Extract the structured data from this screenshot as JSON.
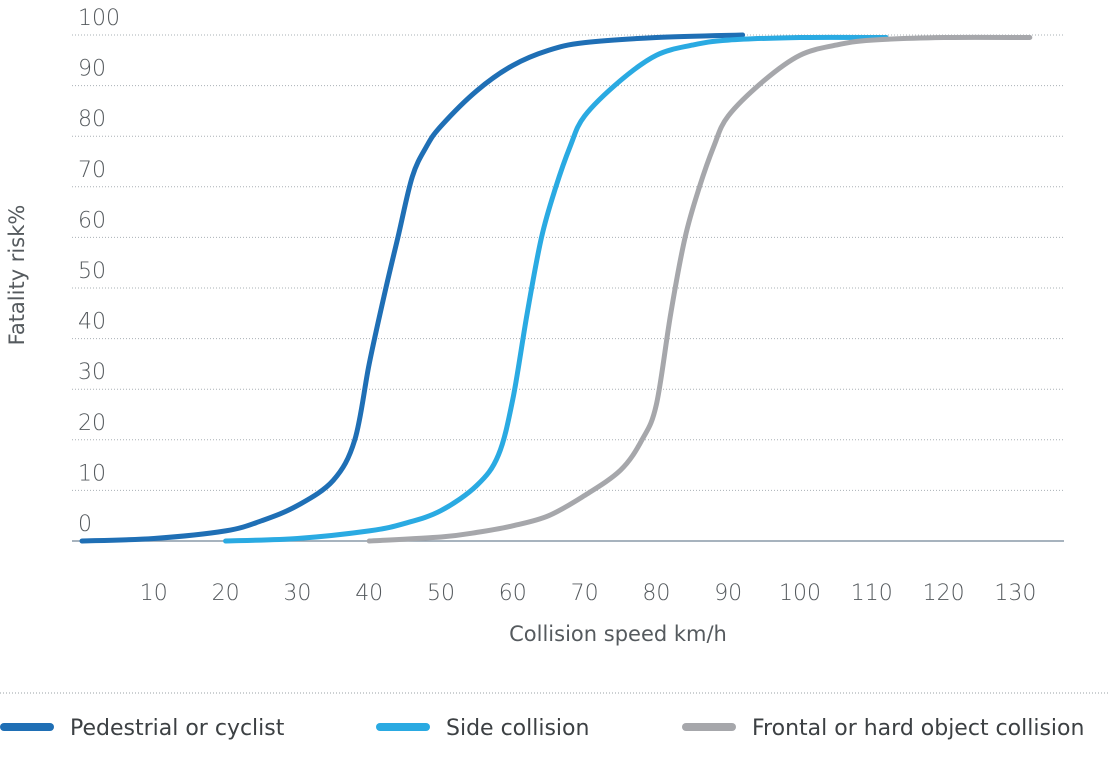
{
  "chart_data": {
    "type": "line",
    "xlabel": "Collision speed km/h",
    "ylabel": "Fatality risk%",
    "ylim": [
      0,
      100
    ],
    "y_ticks": [
      "0",
      "10",
      "20",
      "30",
      "40",
      "50",
      "60",
      "70",
      "80",
      "90",
      "100"
    ],
    "x_ticks": [
      "10",
      "20",
      "30",
      "40",
      "50",
      "60",
      "70",
      "80",
      "90",
      "100",
      "110",
      "120",
      "130"
    ],
    "grid": "horizontal dotted",
    "legend_position": "bottom",
    "series": [
      {
        "name": "Pedestrial or cyclist",
        "color": "#1f6fb5",
        "points": [
          [
            0,
            0
          ],
          [
            10,
            0.5
          ],
          [
            20,
            2
          ],
          [
            25,
            4
          ],
          [
            30,
            7
          ],
          [
            35,
            12
          ],
          [
            38,
            20
          ],
          [
            40,
            35
          ],
          [
            42,
            48
          ],
          [
            44,
            60
          ],
          [
            46,
            72
          ],
          [
            48,
            78
          ],
          [
            50,
            82
          ],
          [
            55,
            89
          ],
          [
            60,
            94
          ],
          [
            65,
            97
          ],
          [
            70,
            98.5
          ],
          [
            80,
            99.5
          ],
          [
            92,
            100
          ]
        ]
      },
      {
        "name": "Side collision",
        "color": "#2aaae2",
        "points": [
          [
            20,
            0
          ],
          [
            30,
            0.5
          ],
          [
            40,
            2
          ],
          [
            45,
            3.5
          ],
          [
            50,
            6
          ],
          [
            55,
            11
          ],
          [
            58,
            17
          ],
          [
            60,
            28
          ],
          [
            62,
            45
          ],
          [
            64,
            60
          ],
          [
            66,
            70
          ],
          [
            68,
            78
          ],
          [
            70,
            84
          ],
          [
            75,
            91
          ],
          [
            80,
            96
          ],
          [
            85,
            98
          ],
          [
            90,
            99
          ],
          [
            100,
            99.5
          ],
          [
            112,
            99.5
          ]
        ]
      },
      {
        "name": "Frontal or hard object collision",
        "color": "#a6a7ab",
        "points": [
          [
            40,
            0
          ],
          [
            50,
            0.8
          ],
          [
            55,
            1.7
          ],
          [
            60,
            3
          ],
          [
            65,
            5
          ],
          [
            70,
            9
          ],
          [
            75,
            14
          ],
          [
            78,
            20
          ],
          [
            80,
            27
          ],
          [
            82,
            45
          ],
          [
            84,
            60
          ],
          [
            86,
            70
          ],
          [
            88,
            78
          ],
          [
            90,
            84
          ],
          [
            95,
            91
          ],
          [
            100,
            96
          ],
          [
            105,
            98
          ],
          [
            110,
            99
          ],
          [
            120,
            99.5
          ],
          [
            132,
            99.5
          ]
        ]
      }
    ]
  }
}
